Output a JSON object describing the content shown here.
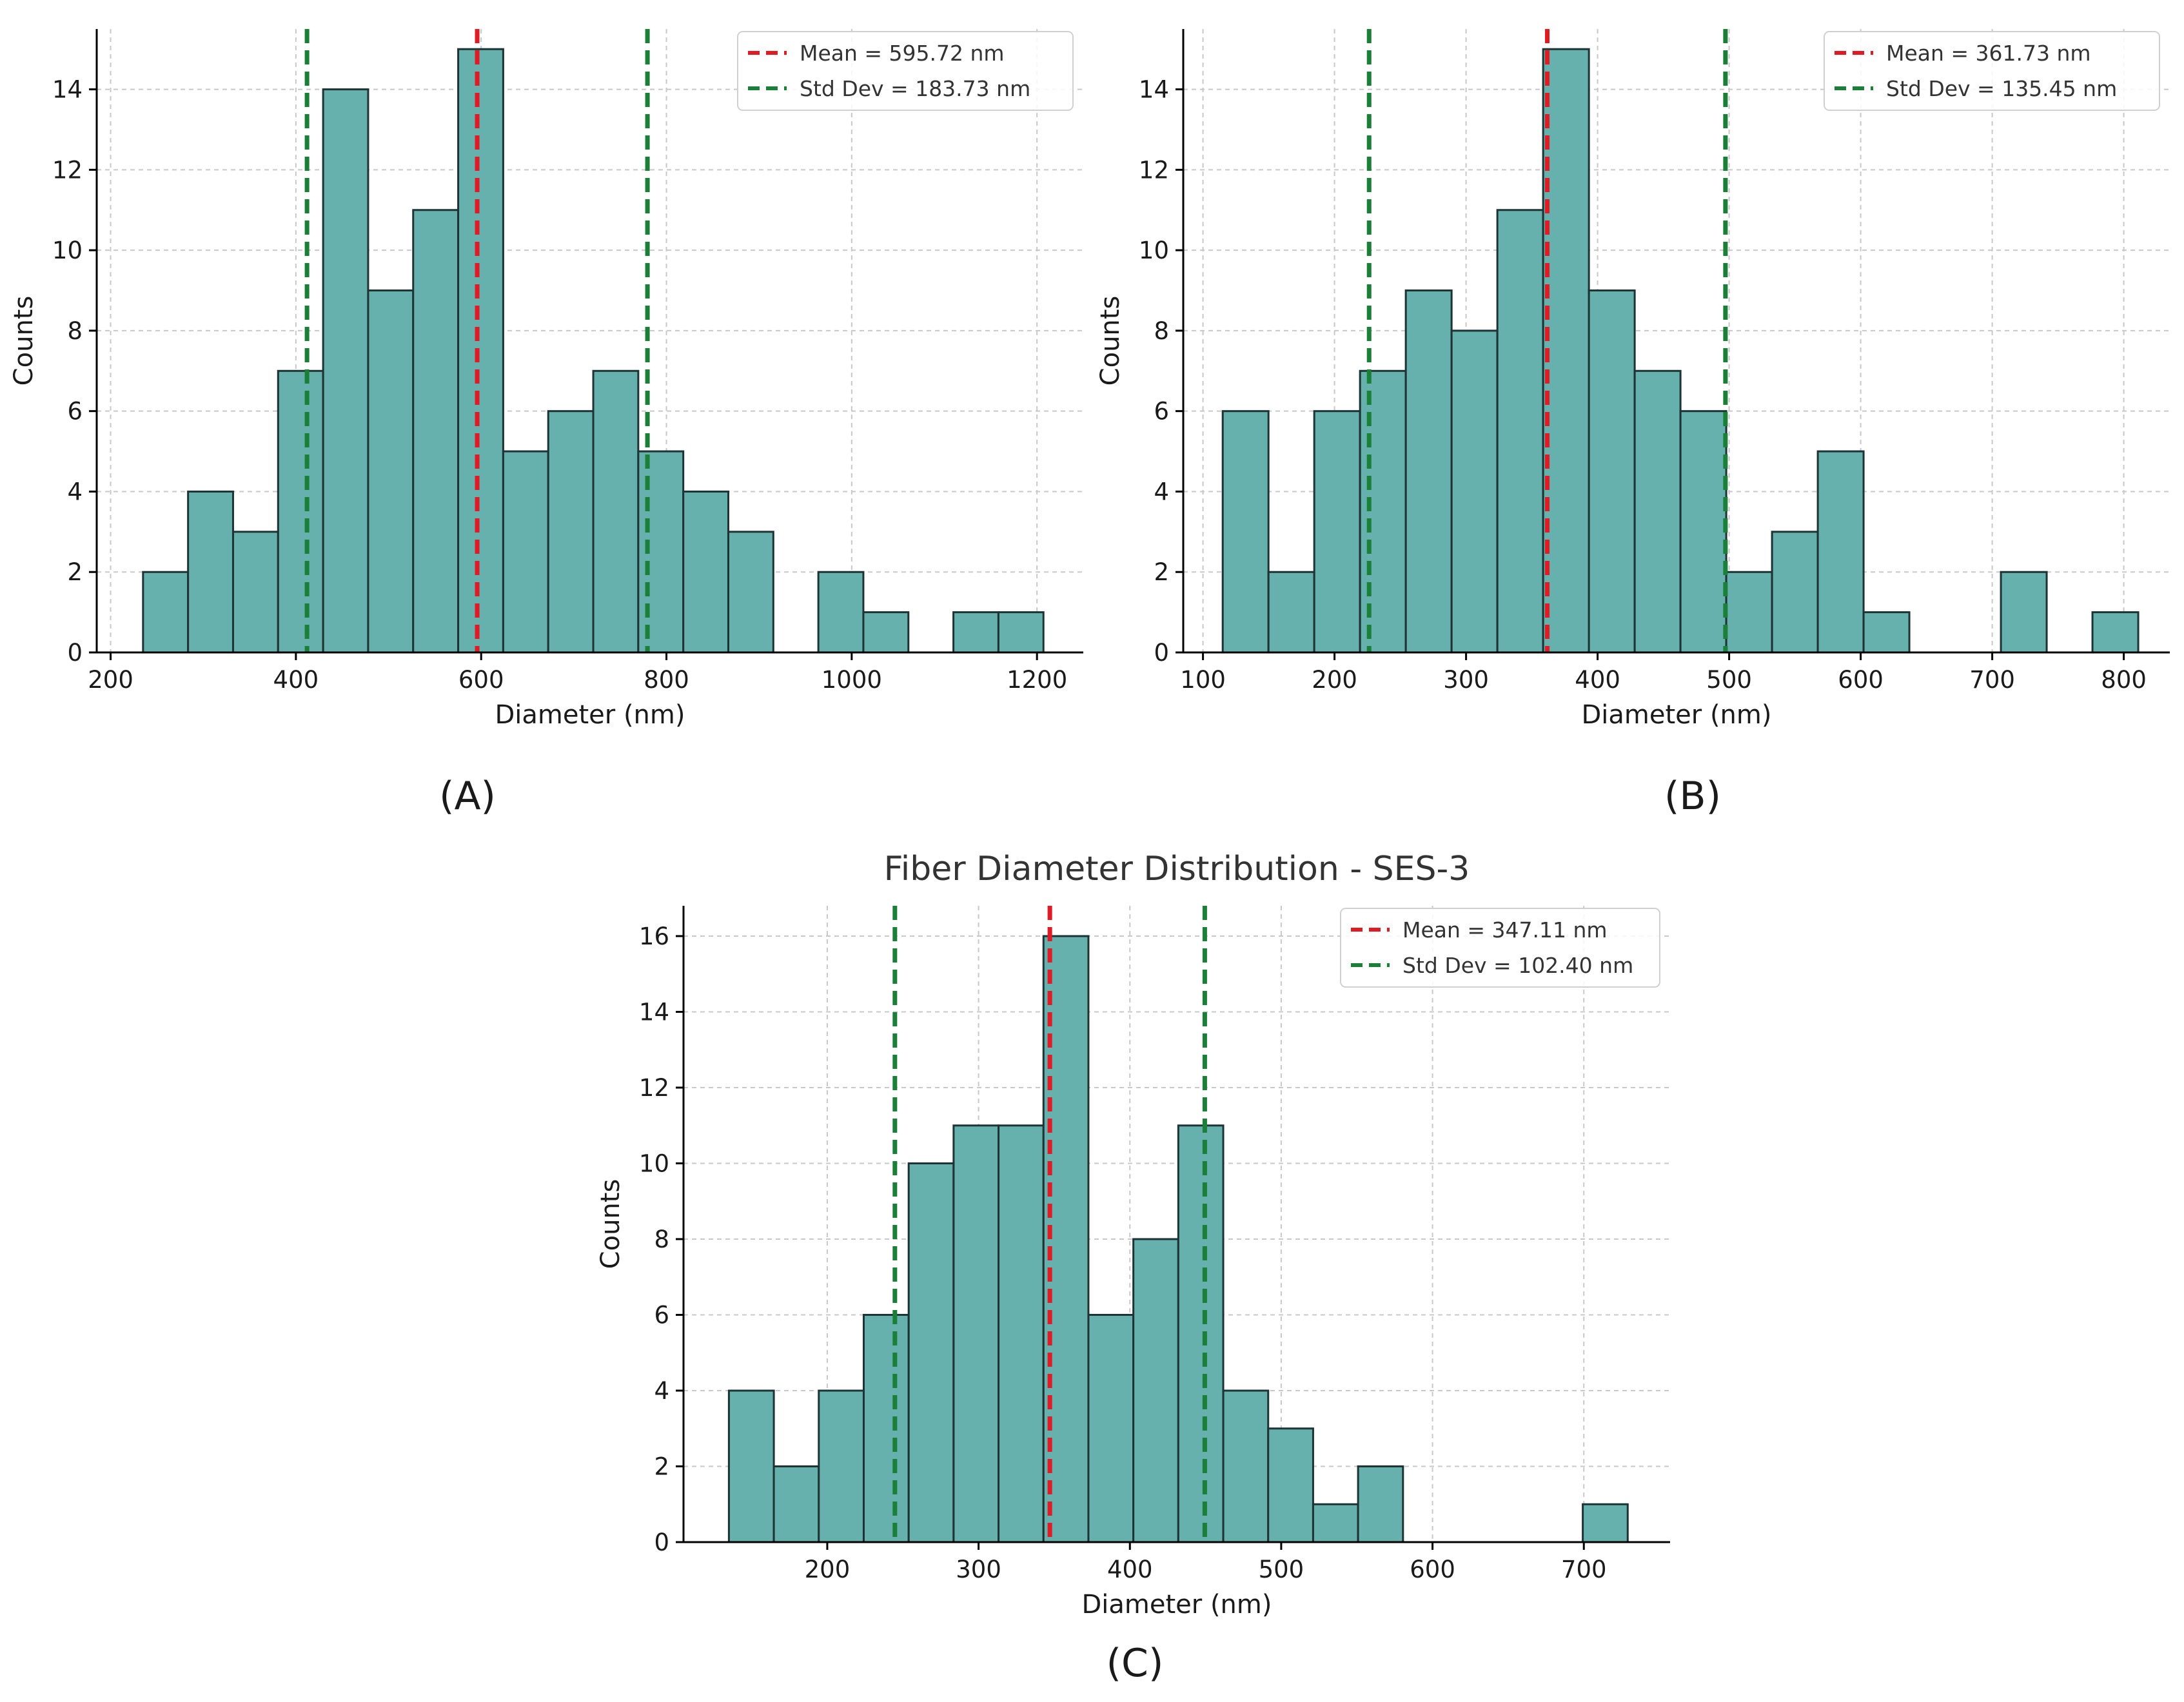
{
  "colors": {
    "bar_fill": "#66b0ae",
    "bar_edge": "#1e3333",
    "mean_line": "#e01b24",
    "std_line": "#1a7f37",
    "grid": "#c8c8c8",
    "axis": "#000000"
  },
  "chart_data": [
    {
      "type": "bar",
      "panel_label": "(A)",
      "title": "",
      "xlabel": "Diameter (nm)",
      "ylabel": "Counts",
      "xlim": [
        185,
        1250
      ],
      "ylim": [
        0,
        15.5
      ],
      "xticks": [
        200,
        400,
        600,
        800,
        1000,
        1200
      ],
      "yticks": [
        0,
        2,
        4,
        6,
        8,
        10,
        12,
        14
      ],
      "grid": true,
      "legend_position": "top-right",
      "bin_start": 235,
      "bin_width": 48.6,
      "counts": [
        2,
        4,
        3,
        7,
        14,
        9,
        11,
        15,
        5,
        6,
        7,
        5,
        4,
        3,
        0,
        2,
        1,
        0,
        1,
        1
      ],
      "mean_value": 595.72,
      "std_lines": [
        412.0,
        779.5
      ],
      "legend": [
        "Mean = 595.72 nm",
        "Std Dev = 183.73 nm"
      ]
    },
    {
      "type": "bar",
      "panel_label": "(B)",
      "title": "",
      "xlabel": "Diameter (nm)",
      "ylabel": "Counts",
      "xlim": [
        85,
        835
      ],
      "ylim": [
        0,
        15.5
      ],
      "xticks": [
        100,
        200,
        300,
        400,
        500,
        600,
        700,
        800
      ],
      "yticks": [
        0,
        2,
        4,
        6,
        8,
        10,
        12,
        14
      ],
      "grid": true,
      "legend_position": "top-right",
      "bin_start": 115,
      "bin_width": 34.8,
      "counts": [
        6,
        2,
        6,
        7,
        9,
        8,
        11,
        15,
        9,
        7,
        6,
        2,
        3,
        5,
        1,
        0,
        0,
        2,
        0,
        1
      ],
      "mean_value": 361.73,
      "std_lines": [
        226.3,
        497.2
      ],
      "legend": [
        "Mean = 361.73 nm",
        "Std Dev = 135.45 nm"
      ]
    },
    {
      "type": "bar",
      "panel_label": "(C)",
      "title": "Fiber Diameter Distribution - SES-3",
      "xlabel": "Diameter (nm)",
      "ylabel": "Counts",
      "xlim": [
        105,
        757
      ],
      "ylim": [
        0,
        16.8
      ],
      "xticks": [
        200,
        300,
        400,
        500,
        600,
        700
      ],
      "yticks": [
        0,
        2,
        4,
        6,
        8,
        10,
        12,
        14,
        16
      ],
      "grid": true,
      "legend_position": "top-right",
      "bin_start": 135,
      "bin_width": 29.7,
      "counts": [
        4,
        2,
        4,
        6,
        10,
        11,
        11,
        16,
        6,
        8,
        11,
        4,
        3,
        1,
        2,
        0,
        0,
        0,
        0,
        1
      ],
      "mean_value": 347.11,
      "std_lines": [
        244.7,
        449.5
      ],
      "legend": [
        "Mean = 347.11 nm",
        "Std Dev = 102.40 nm"
      ]
    }
  ]
}
